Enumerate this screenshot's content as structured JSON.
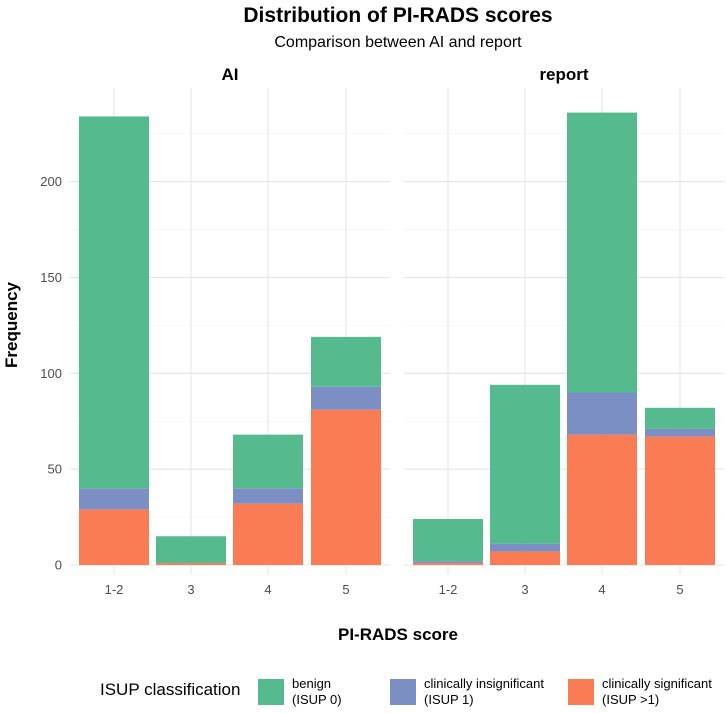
{
  "chart_data": {
    "type": "bar",
    "stacked": true,
    "title": "Distribution of PI-RADS scores",
    "subtitle": "Comparison between AI and report",
    "xlabel": "PI-RADS score",
    "ylabel": "Frequency",
    "ylim": [
      0,
      240
    ],
    "yticks": [
      0,
      50,
      100,
      150,
      200
    ],
    "categories": [
      "1-2",
      "3",
      "4",
      "5"
    ],
    "legend": {
      "title": "ISUP classification",
      "position": "bottom",
      "items": [
        {
          "key": "benign",
          "line1": "benign",
          "line2": "(ISUP 0)",
          "color": "#55BB8F"
        },
        {
          "key": "insig",
          "line1": "clinically insignificant",
          "line2": "(ISUP 1)",
          "color": "#7B8FC4"
        },
        {
          "key": "sig",
          "line1": "clinically significant",
          "line2": "(ISUP >1)",
          "color": "#FA7C55"
        }
      ]
    },
    "facets": [
      {
        "name": "AI",
        "series": [
          {
            "key": "sig",
            "name": "clinically significant (ISUP >1)",
            "values": [
              29,
              1,
              32,
              81
            ]
          },
          {
            "key": "insig",
            "name": "clinically insignificant (ISUP 1)",
            "values": [
              11,
              0,
              8,
              12
            ]
          },
          {
            "key": "benign",
            "name": "benign (ISUP 0)",
            "values": [
              194,
              14,
              28,
              26
            ]
          }
        ]
      },
      {
        "name": "report",
        "series": [
          {
            "key": "sig",
            "name": "clinically significant (ISUP >1)",
            "values": [
              1,
              7,
              68,
              67
            ]
          },
          {
            "key": "insig",
            "name": "clinically insignificant (ISUP 1)",
            "values": [
              1,
              4,
              22,
              4
            ]
          },
          {
            "key": "benign",
            "name": "benign (ISUP 0)",
            "values": [
              22,
              83,
              146,
              11
            ]
          }
        ]
      }
    ]
  }
}
